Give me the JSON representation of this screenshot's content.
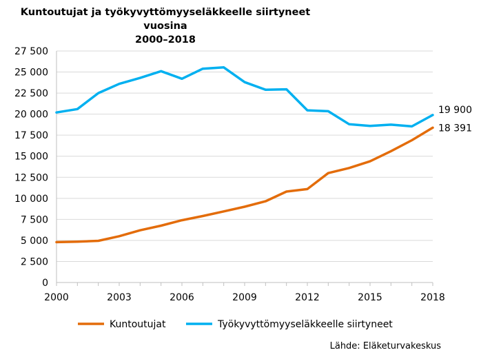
{
  "chart_data": {
    "type": "line",
    "title": "Kuntoutujat ja työkyvyttömyyseläkkeelle siirtyneet vuosina",
    "subtitle": "2000–2018",
    "x": [
      2000,
      2001,
      2002,
      2003,
      2004,
      2005,
      2006,
      2007,
      2008,
      2009,
      2010,
      2011,
      2012,
      2013,
      2014,
      2015,
      2016,
      2017,
      2018
    ],
    "x_ticks": [
      2000,
      2003,
      2006,
      2009,
      2012,
      2015,
      2018
    ],
    "xlim": [
      2000,
      2018
    ],
    "ylim": [
      0,
      27500
    ],
    "y_ticks": [
      0,
      2500,
      5000,
      7500,
      10000,
      12500,
      15000,
      17500,
      20000,
      22500,
      25000,
      27500
    ],
    "y_tick_labels": [
      "0",
      "2 500",
      "5 000",
      "7 500",
      "10 000",
      "12 500",
      "15 000",
      "17 500",
      "20 000",
      "22 500",
      "25 000",
      "27 500"
    ],
    "grid": "horizontal",
    "legend_position": "bottom",
    "series": [
      {
        "name": "Kuntoutujat",
        "color": "#E36C0A",
        "values": [
          4800,
          4850,
          4950,
          5500,
          6200,
          6750,
          7400,
          7900,
          8450,
          9000,
          9650,
          10800,
          11100,
          13000,
          13600,
          14400,
          15600,
          16900,
          18391
        ],
        "end_label": "18 391"
      },
      {
        "name": "Työkyvyttömyyseläkkeelle siirtyneet",
        "color": "#00B0F0",
        "values": [
          20200,
          20600,
          22500,
          23600,
          24300,
          25100,
          24200,
          25400,
          25550,
          23800,
          22900,
          22950,
          20450,
          20350,
          18800,
          18600,
          18750,
          18550,
          19900
        ],
        "end_label": "19 900"
      }
    ],
    "source": "Lähde:  Eläketurvakeskus"
  }
}
